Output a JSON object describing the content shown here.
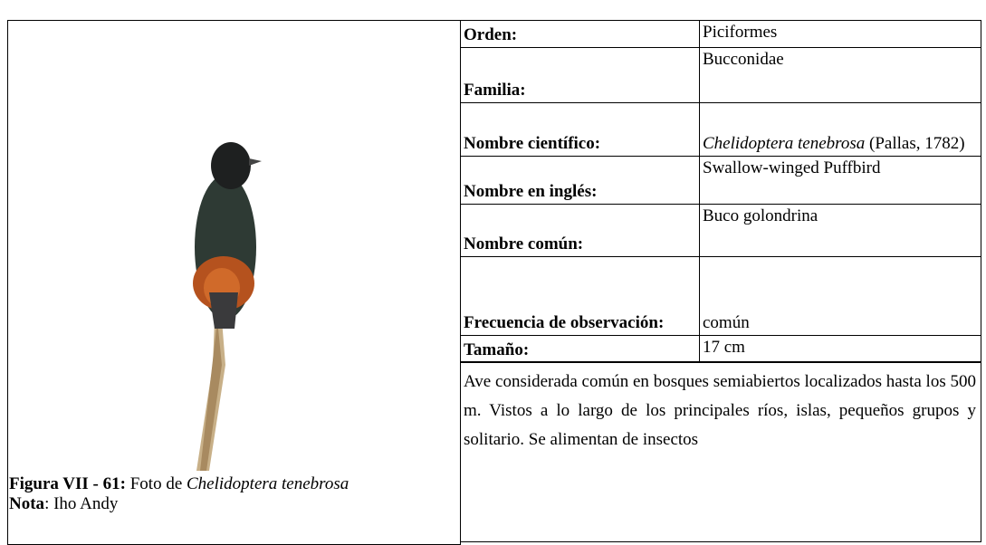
{
  "figure": {
    "caption_label": "Figura VII - 61:",
    "caption_text": "Foto de",
    "caption_species": "Chelidoptera tenebrosa",
    "note_label": "Nota",
    "note_text": ": Iho Andy"
  },
  "table": {
    "rows": [
      {
        "label": "Orden:",
        "value": "Piciformes"
      },
      {
        "label": "Familia:",
        "value": "Bucconidae"
      },
      {
        "label": "Nombre científico:",
        "value_italic": "Chelidoptera tenebrosa",
        "value": "(Pallas, 1782)"
      },
      {
        "label": "Nombre en inglés:",
        "value": "Swallow-winged Puffbird"
      },
      {
        "label": "Nombre común:",
        "value": "Buco golondrina"
      },
      {
        "label": "Frecuencia de observación:",
        "value": "común"
      },
      {
        "label": "Tamaño:",
        "value": "17 cm"
      }
    ],
    "description": "Ave considerada común en bosques semiabiertos localizados hasta los 500 m. Vistos a lo largo de los principales ríos, islas, pequeños grupos y solitario. Se alimentan de insectos"
  }
}
